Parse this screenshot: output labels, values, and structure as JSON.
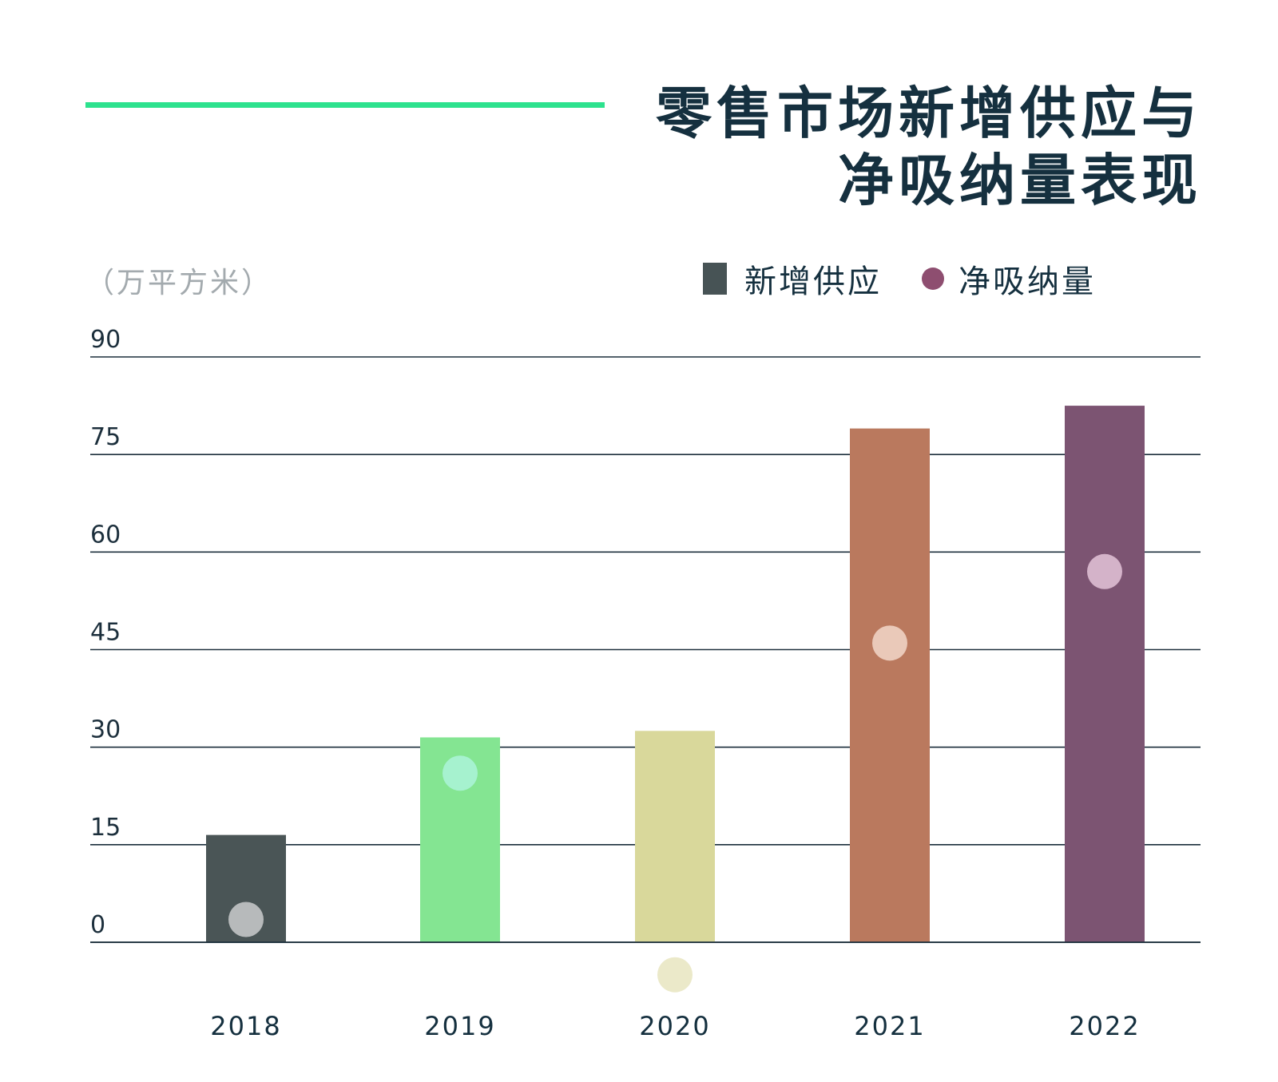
{
  "title": {
    "line1": "零售市场新增供应与",
    "line2": "净吸纳量表现"
  },
  "unit_label": "（万平方米）",
  "legend": {
    "supply": "新增供应",
    "absorption": "净吸纳量"
  },
  "colors": {
    "accent": "#2de28e",
    "axis": "#1c2f3c",
    "bars": [
      "#4a5556",
      "#84e592",
      "#d9d89b",
      "#ba795e",
      "#7c5472"
    ],
    "dots": [
      "#b7babb",
      "#a6f2cf",
      "#ebe9c9",
      "#eac9b9",
      "#d4b3c9"
    ]
  },
  "chart_data": {
    "type": "bar",
    "title": "零售市场新增供应与净吸纳量表现",
    "ylabel": "（万平方米）",
    "xlabel": "",
    "ylim": [
      0,
      90
    ],
    "yticks": [
      0,
      15,
      30,
      45,
      60,
      75,
      90
    ],
    "categories": [
      "2018",
      "2019",
      "2020",
      "2021",
      "2022"
    ],
    "series": [
      {
        "name": "新增供应",
        "kind": "bar",
        "values": [
          16.5,
          31.5,
          32.5,
          79,
          82.5
        ]
      },
      {
        "name": "净吸纳量",
        "kind": "dot",
        "values": [
          3.5,
          26,
          -5,
          46,
          57
        ]
      }
    ],
    "legend_position": "top-right"
  }
}
